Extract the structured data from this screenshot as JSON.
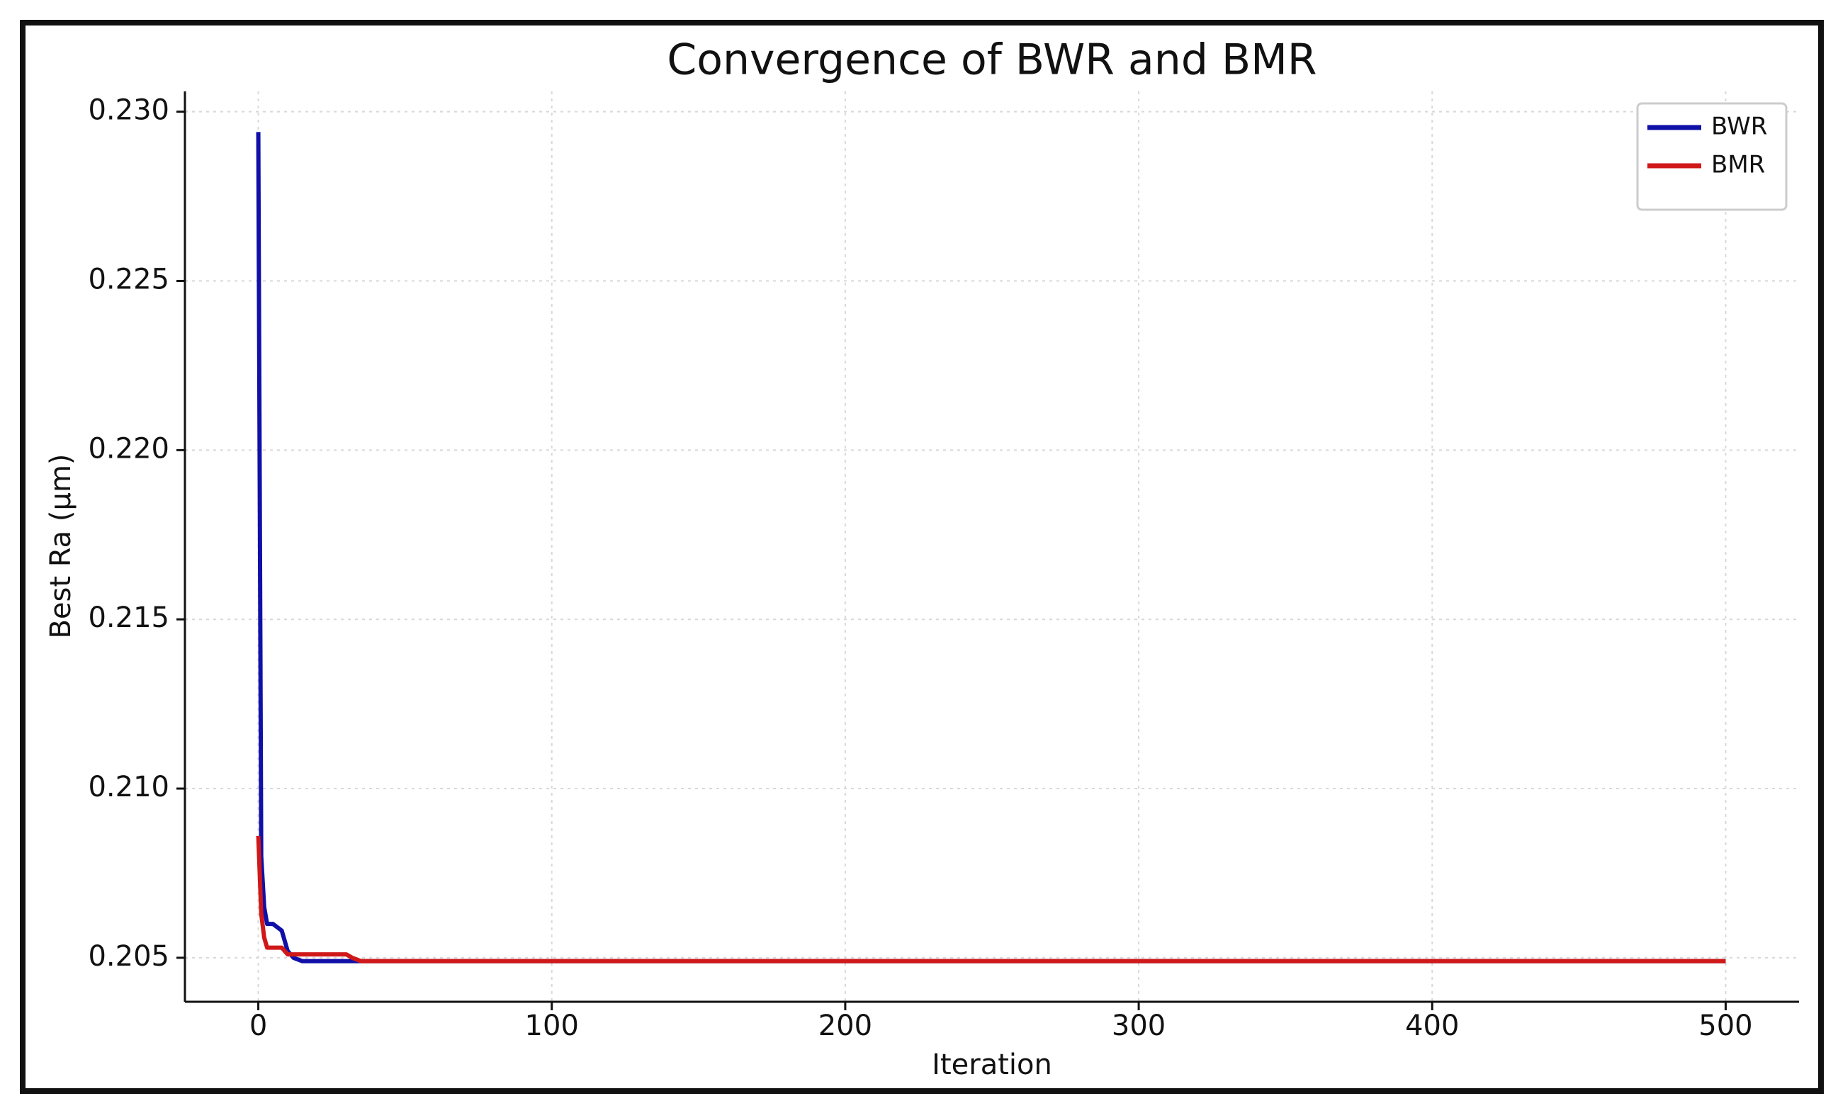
{
  "chart_data": {
    "type": "line",
    "title": "Convergence of BWR and BMR",
    "x_label": "Iteration",
    "y_label": "Best Ra (µm)",
    "x": [
      0,
      1,
      2,
      3,
      5,
      8,
      10,
      12,
      15,
      20,
      30,
      32,
      35,
      50,
      67,
      100,
      200,
      300,
      400,
      500
    ],
    "series": [
      {
        "name": "BWR",
        "color": "#1010a8",
        "values": [
          0.2294,
          0.208,
          0.2065,
          0.206,
          0.206,
          0.2058,
          0.2052,
          0.205,
          0.2049,
          0.2049,
          0.2049,
          0.2049,
          0.2049,
          0.2049,
          0.2049,
          0.2049,
          0.2049,
          0.2049,
          0.2049,
          0.2049
        ]
      },
      {
        "name": "BMR",
        "color": "#d01818",
        "values": [
          0.2086,
          0.2063,
          0.2056,
          0.2053,
          0.2053,
          0.2053,
          0.2051,
          0.2051,
          0.2051,
          0.2051,
          0.2051,
          0.205,
          0.2049,
          0.2049,
          0.2049,
          0.2049,
          0.2049,
          0.2049,
          0.2049,
          0.2049
        ]
      }
    ],
    "xlim": [
      -25,
      525
    ],
    "ylim": [
      0.2037,
      0.2306
    ],
    "xticks": [
      0,
      100,
      200,
      300,
      400,
      500
    ],
    "yticks": [
      0.205,
      {
        "value": 0.21,
        "label": "0.210"
      },
      0.215,
      {
        "value": 0.22,
        "label": "0.220"
      },
      0.225,
      {
        "value": 0.23,
        "label": "0.230"
      }
    ],
    "grid": true,
    "legend": "upper right"
  }
}
